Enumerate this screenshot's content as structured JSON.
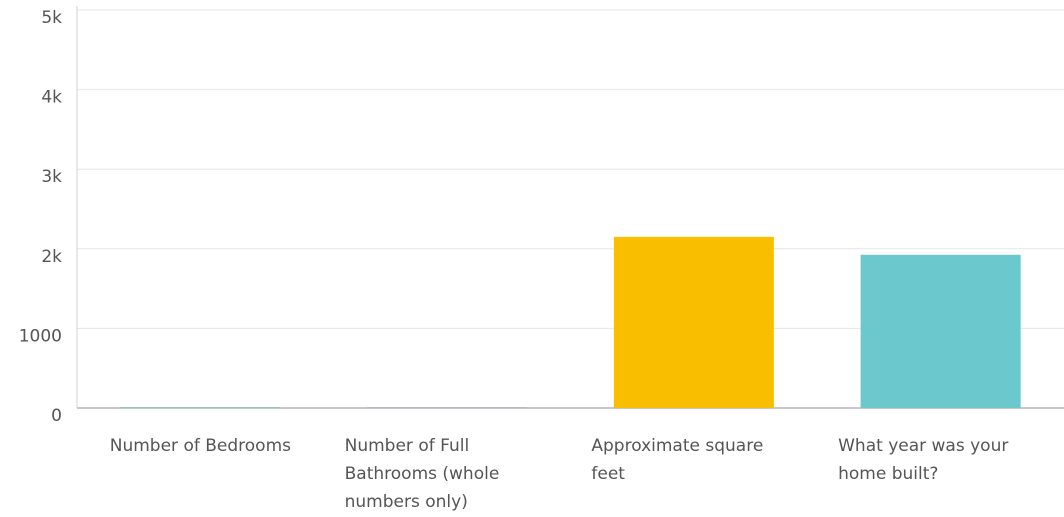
{
  "chart_data": {
    "type": "bar",
    "categories": [
      "Number of Bedrooms",
      "Number of Full Bathrooms (whole numbers only)",
      "Approximate square feet",
      "What year was your home built?"
    ],
    "values": [
      3,
      2,
      2150,
      1925
    ],
    "colors": [
      "#00bf6f",
      "#507cb6",
      "#f9be00",
      "#6bc8cd"
    ],
    "ylim": [
      0,
      5000
    ],
    "yticks": [
      0,
      1000,
      {
        "value": 2000,
        "label": "2k"
      },
      {
        "value": 3000,
        "label": "3k"
      },
      {
        "value": 4000,
        "label": "4k"
      },
      {
        "value": 5000,
        "label": "5k"
      }
    ],
    "grid": true
  }
}
